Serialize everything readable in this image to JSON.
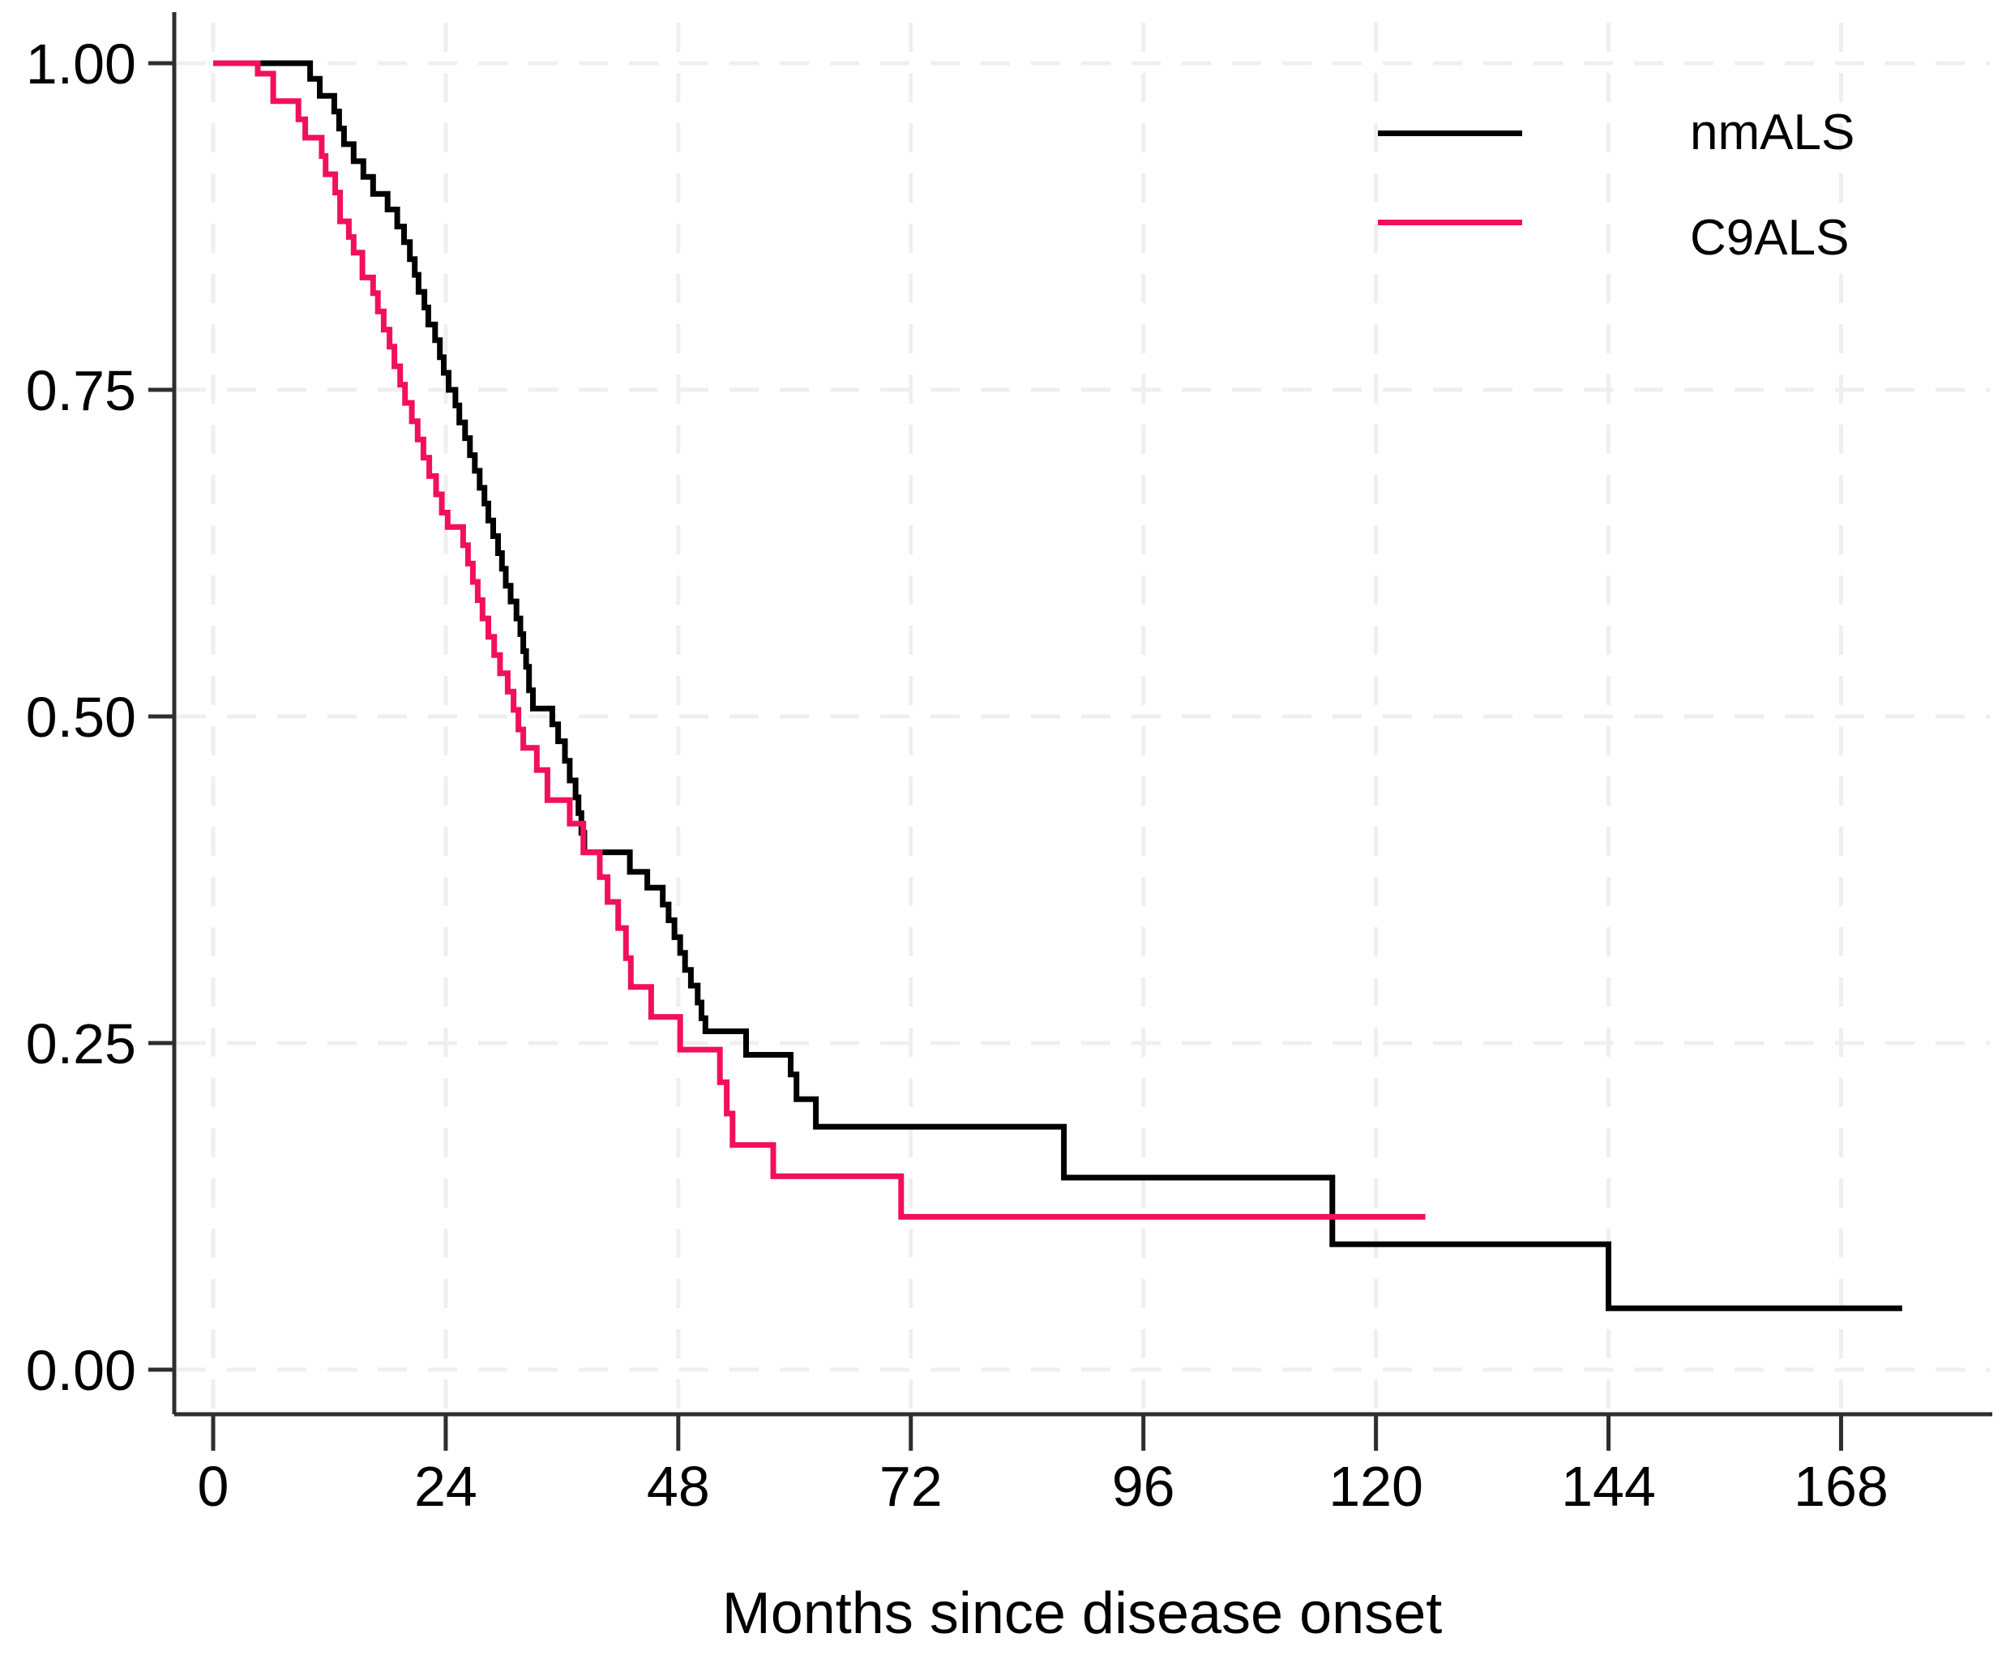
{
  "chart_data": {
    "type": "line",
    "chart_style": "kaplan-meier-step-survival",
    "title": "",
    "xlabel": "Months since disease onset",
    "ylabel": "",
    "x_range_months": [
      -4,
      184
    ],
    "y_range": [
      0,
      1
    ],
    "xtick_values": [
      0,
      24,
      48,
      72,
      96,
      120,
      144,
      168
    ],
    "xtick_labels": [
      "0",
      "24",
      "48",
      "72",
      "96",
      "120",
      "144",
      "168"
    ],
    "ytick_values": [
      1.0,
      0.75,
      0.5,
      0.25,
      0.0
    ],
    "ytick_labels": [
      "1.00",
      "0.75",
      "0.50",
      "0.25",
      "0.00"
    ],
    "grid": {
      "style": "dashed",
      "color": "#efefef",
      "horizontal": true,
      "vertical": true
    },
    "axis_color": "#2e2e2e",
    "legend": {
      "position": "top-right-inside",
      "entries": [
        {
          "label": "nmALS",
          "color": "#000000"
        },
        {
          "label": "C9ALS",
          "color": "#f2105a"
        }
      ]
    },
    "series": [
      {
        "name": "nmALS",
        "color": "#000000",
        "step": true,
        "points": [
          [
            0,
            1.0
          ],
          [
            10,
            0.988
          ],
          [
            11,
            0.975
          ],
          [
            12.5,
            0.963
          ],
          [
            13,
            0.95
          ],
          [
            13.5,
            0.938
          ],
          [
            14.5,
            0.925
          ],
          [
            15.5,
            0.913
          ],
          [
            16.5,
            0.9
          ],
          [
            18,
            0.888
          ],
          [
            19,
            0.875
          ],
          [
            19.7,
            0.863
          ],
          [
            20.3,
            0.85
          ],
          [
            20.8,
            0.838
          ],
          [
            21.2,
            0.825
          ],
          [
            21.8,
            0.813
          ],
          [
            22.2,
            0.8
          ],
          [
            22.9,
            0.788
          ],
          [
            23.4,
            0.775
          ],
          [
            23.8,
            0.763
          ],
          [
            24.3,
            0.75
          ],
          [
            25,
            0.738
          ],
          [
            25.4,
            0.725
          ],
          [
            26,
            0.713
          ],
          [
            26.5,
            0.7
          ],
          [
            27,
            0.688
          ],
          [
            27.5,
            0.675
          ],
          [
            28,
            0.663
          ],
          [
            28.4,
            0.65
          ],
          [
            28.9,
            0.638
          ],
          [
            29.4,
            0.625
          ],
          [
            29.8,
            0.613
          ],
          [
            30.2,
            0.6
          ],
          [
            30.7,
            0.588
          ],
          [
            31.3,
            0.575
          ],
          [
            31.7,
            0.563
          ],
          [
            32,
            0.55
          ],
          [
            32.3,
            0.538
          ],
          [
            32.6,
            0.52
          ],
          [
            33,
            0.506
          ],
          [
            35,
            0.494
          ],
          [
            35.6,
            0.481
          ],
          [
            36.3,
            0.466
          ],
          [
            36.8,
            0.451
          ],
          [
            37.4,
            0.438
          ],
          [
            37.7,
            0.426
          ],
          [
            38,
            0.411
          ],
          [
            38.3,
            0.396
          ],
          [
            43,
            0.381
          ],
          [
            44.8,
            0.369
          ],
          [
            46.4,
            0.356
          ],
          [
            47,
            0.344
          ],
          [
            47.6,
            0.331
          ],
          [
            48.2,
            0.319
          ],
          [
            48.7,
            0.306
          ],
          [
            49.3,
            0.294
          ],
          [
            50,
            0.281
          ],
          [
            50.4,
            0.269
          ],
          [
            50.8,
            0.259
          ],
          [
            55,
            0.241
          ],
          [
            59.6,
            0.226
          ],
          [
            60.2,
            0.207
          ],
          [
            62.2,
            0.186
          ],
          [
            87.8,
            0.147
          ],
          [
            115.5,
            0.096
          ],
          [
            144,
            0.047
          ],
          [
            174.3,
            0.047
          ]
        ]
      },
      {
        "name": "C9ALS",
        "color": "#f2105a",
        "step": true,
        "points": [
          [
            0,
            1.0
          ],
          [
            4.6,
            0.992
          ],
          [
            6.2,
            0.971
          ],
          [
            8.8,
            0.957
          ],
          [
            9.5,
            0.943
          ],
          [
            11.2,
            0.929
          ],
          [
            11.6,
            0.915
          ],
          [
            12.6,
            0.901
          ],
          [
            13.1,
            0.879
          ],
          [
            14,
            0.867
          ],
          [
            14.5,
            0.855
          ],
          [
            15.4,
            0.836
          ],
          [
            16.5,
            0.824
          ],
          [
            17,
            0.81
          ],
          [
            17.6,
            0.796
          ],
          [
            18.2,
            0.783
          ],
          [
            18.7,
            0.768
          ],
          [
            19.3,
            0.754
          ],
          [
            19.8,
            0.74
          ],
          [
            20.5,
            0.726
          ],
          [
            21.1,
            0.712
          ],
          [
            21.7,
            0.698
          ],
          [
            22.3,
            0.684
          ],
          [
            23,
            0.67
          ],
          [
            23.6,
            0.656
          ],
          [
            24.2,
            0.645
          ],
          [
            25.8,
            0.631
          ],
          [
            26.3,
            0.617
          ],
          [
            26.8,
            0.603
          ],
          [
            27.3,
            0.589
          ],
          [
            27.8,
            0.575
          ],
          [
            28.4,
            0.561
          ],
          [
            29,
            0.547
          ],
          [
            29.6,
            0.533
          ],
          [
            30.4,
            0.519
          ],
          [
            31,
            0.505
          ],
          [
            31.5,
            0.49
          ],
          [
            32,
            0.476
          ],
          [
            33.4,
            0.459
          ],
          [
            34.5,
            0.436
          ],
          [
            36.8,
            0.418
          ],
          [
            38.2,
            0.396
          ],
          [
            39.9,
            0.377
          ],
          [
            40.7,
            0.358
          ],
          [
            41.8,
            0.338
          ],
          [
            42.6,
            0.315
          ],
          [
            43.1,
            0.293
          ],
          [
            45.2,
            0.27
          ],
          [
            48.2,
            0.245
          ],
          [
            52.3,
            0.22
          ],
          [
            53,
            0.196
          ],
          [
            53.6,
            0.172
          ],
          [
            57.8,
            0.148
          ],
          [
            71,
            0.117
          ],
          [
            125.1,
            0.117
          ]
        ]
      }
    ]
  }
}
